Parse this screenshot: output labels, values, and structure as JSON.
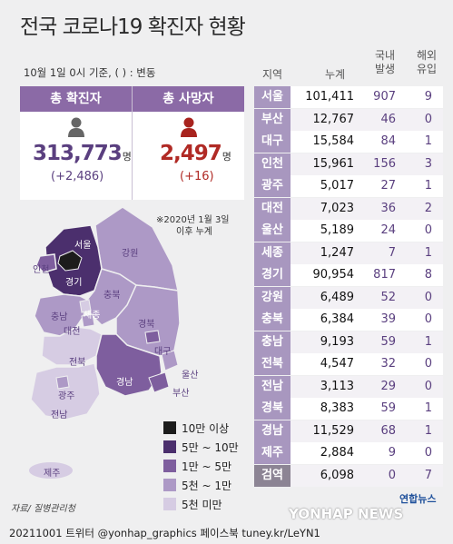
{
  "title": "전국 코로나19 확진자 현황",
  "note": "10월 1일 0시 기준, ( ) : 변동",
  "summary": {
    "confirmed_label": "총 확진자",
    "confirmed_total": "313,773",
    "confirmed_delta": "(+2,486)",
    "death_label": "총 사망자",
    "death_total": "2,497",
    "death_delta": "(+16)",
    "unit": "명",
    "confirmed_icon": "person-icon-gray",
    "death_icon": "person-icon-red"
  },
  "since_note": [
    "※2020년 1월 3일",
    "이후 누계"
  ],
  "map_labels": [
    "서울",
    "인천",
    "경기",
    "강원",
    "충북",
    "세종",
    "충남",
    "대전",
    "경북",
    "대구",
    "전북",
    "울산",
    "경남",
    "부산",
    "광주",
    "전남",
    "제주"
  ],
  "legend": [
    {
      "label": "10만 이상",
      "color": "#1c1c1c"
    },
    {
      "label": "5만 ~ 10만",
      "color": "#4b2f6d"
    },
    {
      "label": "1만 ~ 5만",
      "color": "#7e5e9e"
    },
    {
      "label": "5천 ~ 1만",
      "color": "#ad99c6"
    },
    {
      "label": "5천 미만",
      "color": "#d6cce3"
    }
  ],
  "source": "자료/ 질병관리청",
  "footer": "20211001 트위터 @yonhap_graphics  페이스북 tuney.kr/LeYN1",
  "watermark": "YONHAP NEWS",
  "brand": "연합뉴스",
  "chart_data": {
    "type": "table",
    "columns": [
      "지역",
      "누계",
      "국내 발생",
      "해외 유입"
    ],
    "rows": [
      {
        "region": "서울",
        "cumulative": 101411,
        "domestic": 907,
        "overseas": 9
      },
      {
        "region": "부산",
        "cumulative": 12767,
        "domestic": 46,
        "overseas": 0
      },
      {
        "region": "대구",
        "cumulative": 15584,
        "domestic": 84,
        "overseas": 1
      },
      {
        "region": "인천",
        "cumulative": 15961,
        "domestic": 156,
        "overseas": 3
      },
      {
        "region": "광주",
        "cumulative": 5017,
        "domestic": 27,
        "overseas": 1
      },
      {
        "region": "대전",
        "cumulative": 7023,
        "domestic": 36,
        "overseas": 2
      },
      {
        "region": "울산",
        "cumulative": 5189,
        "domestic": 24,
        "overseas": 0
      },
      {
        "region": "세종",
        "cumulative": 1247,
        "domestic": 7,
        "overseas": 1
      },
      {
        "region": "경기",
        "cumulative": 90954,
        "domestic": 817,
        "overseas": 8
      },
      {
        "region": "강원",
        "cumulative": 6489,
        "domestic": 52,
        "overseas": 0
      },
      {
        "region": "충북",
        "cumulative": 6384,
        "domestic": 39,
        "overseas": 0
      },
      {
        "region": "충남",
        "cumulative": 9193,
        "domestic": 59,
        "overseas": 1
      },
      {
        "region": "전북",
        "cumulative": 4547,
        "domestic": 32,
        "overseas": 0
      },
      {
        "region": "전남",
        "cumulative": 3113,
        "domestic": 29,
        "overseas": 0
      },
      {
        "region": "경북",
        "cumulative": 8383,
        "domestic": 59,
        "overseas": 1
      },
      {
        "region": "경남",
        "cumulative": 11529,
        "domestic": 68,
        "overseas": 1
      },
      {
        "region": "제주",
        "cumulative": 2884,
        "domestic": 9,
        "overseas": 0
      },
      {
        "region": "검역",
        "cumulative": 6098,
        "domestic": 0,
        "overseas": 7
      }
    ]
  }
}
